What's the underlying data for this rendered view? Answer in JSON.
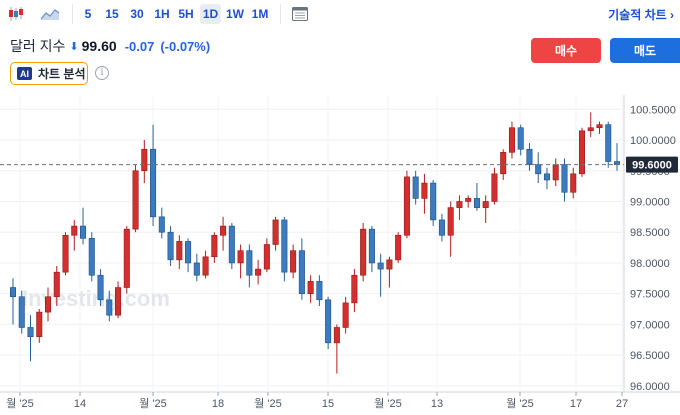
{
  "toolbar": {
    "chart_type_icon": "candlestick-icon",
    "area_icon": "area-chart-icon",
    "timeframes": [
      "5",
      "15",
      "30",
      "1H",
      "5H",
      "1D",
      "1W",
      "1M"
    ],
    "active_timeframe": "1D",
    "calendar_icon": "calendar-icon",
    "tools_label": "기술적 차트 ›"
  },
  "quote": {
    "name": "달러 지수",
    "direction_icon": "down-arrow-icon",
    "price": "99.60",
    "change": "-0.07",
    "change_pct": "(-0.07%)"
  },
  "ai_analysis": {
    "badge": "AI",
    "label": "차트 분석"
  },
  "info_icon": "info-icon",
  "actions": {
    "buy": "매수",
    "sell": "매도"
  },
  "chart_data": {
    "type": "candlestick",
    "watermark": "Investing.com",
    "y_ticks": [
      "100.5000",
      "100.0000",
      "99.5000",
      "99.0000",
      "98.5000",
      "98.0000",
      "97.5000",
      "97.0000",
      "96.5000",
      "96.0000"
    ],
    "ylim": [
      95.9,
      100.7
    ],
    "current_price_label": "99.6000",
    "current_price": 99.6,
    "x_ticks": [
      "월 '25",
      "14",
      "월 '25",
      "18",
      "월 '25",
      "15",
      "월 '25",
      "13",
      "월 '25",
      "17",
      "27"
    ],
    "grid": true,
    "up_color": "#d32f2f",
    "down_color": "#3b7bbf",
    "candles": [
      [
        97.6,
        97.75,
        97.0,
        97.45
      ],
      [
        97.45,
        97.55,
        96.85,
        96.95
      ],
      [
        96.95,
        97.15,
        96.4,
        96.8
      ],
      [
        96.8,
        97.25,
        96.7,
        97.2
      ],
      [
        97.2,
        97.6,
        97.05,
        97.45
      ],
      [
        97.45,
        97.95,
        97.3,
        97.85
      ],
      [
        97.85,
        98.5,
        97.8,
        98.45
      ],
      [
        98.45,
        98.7,
        98.2,
        98.6
      ],
      [
        98.6,
        98.9,
        98.3,
        98.4
      ],
      [
        98.4,
        98.5,
        97.7,
        97.8
      ],
      [
        97.8,
        97.9,
        97.3,
        97.4
      ],
      [
        97.4,
        97.55,
        97.05,
        97.15
      ],
      [
        97.15,
        97.7,
        97.1,
        97.6
      ],
      [
        97.6,
        98.6,
        97.5,
        98.55
      ],
      [
        98.55,
        99.6,
        98.5,
        99.5
      ],
      [
        99.5,
        100.0,
        99.3,
        99.85
      ],
      [
        99.85,
        100.25,
        98.6,
        98.75
      ],
      [
        98.75,
        98.9,
        98.4,
        98.5
      ],
      [
        98.5,
        98.6,
        97.95,
        98.05
      ],
      [
        98.05,
        98.45,
        97.9,
        98.35
      ],
      [
        98.35,
        98.4,
        97.85,
        98.0
      ],
      [
        98.0,
        98.15,
        97.7,
        97.8
      ],
      [
        97.8,
        98.2,
        97.75,
        98.1
      ],
      [
        98.1,
        98.5,
        98.0,
        98.45
      ],
      [
        98.45,
        98.75,
        98.2,
        98.6
      ],
      [
        98.6,
        98.65,
        97.9,
        98.0
      ],
      [
        98.0,
        98.3,
        97.75,
        98.2
      ],
      [
        98.2,
        98.3,
        97.6,
        97.8
      ],
      [
        97.8,
        98.05,
        97.65,
        97.9
      ],
      [
        97.9,
        98.4,
        97.85,
        98.3
      ],
      [
        98.3,
        98.75,
        98.2,
        98.7
      ],
      [
        98.7,
        98.75,
        97.7,
        97.85
      ],
      [
        97.85,
        98.3,
        97.75,
        98.2
      ],
      [
        98.2,
        98.4,
        97.4,
        97.5
      ],
      [
        97.5,
        97.8,
        97.35,
        97.7
      ],
      [
        97.7,
        97.8,
        97.3,
        97.4
      ],
      [
        97.4,
        97.45,
        96.6,
        96.7
      ],
      [
        96.7,
        97.0,
        96.2,
        96.95
      ],
      [
        96.95,
        97.45,
        96.85,
        97.35
      ],
      [
        97.35,
        97.9,
        97.2,
        97.8
      ],
      [
        97.8,
        98.65,
        97.7,
        98.55
      ],
      [
        98.55,
        98.6,
        97.85,
        98.0
      ],
      [
        98.0,
        98.15,
        97.45,
        97.9
      ],
      [
        97.9,
        98.1,
        97.6,
        98.05
      ],
      [
        98.05,
        98.5,
        98.0,
        98.45
      ],
      [
        98.45,
        99.5,
        98.4,
        99.4
      ],
      [
        99.4,
        99.5,
        98.95,
        99.05
      ],
      [
        99.05,
        99.45,
        98.8,
        99.3
      ],
      [
        99.3,
        99.35,
        98.6,
        98.7
      ],
      [
        98.7,
        98.8,
        98.35,
        98.45
      ],
      [
        98.45,
        99.0,
        98.1,
        98.9
      ],
      [
        98.9,
        99.1,
        98.7,
        99.0
      ],
      [
        99.0,
        99.1,
        98.9,
        99.05
      ],
      [
        99.05,
        99.3,
        98.85,
        98.9
      ],
      [
        98.9,
        99.1,
        98.65,
        99.0
      ],
      [
        99.0,
        99.55,
        98.95,
        99.45
      ],
      [
        99.45,
        99.85,
        99.35,
        99.8
      ],
      [
        99.8,
        100.3,
        99.7,
        100.2
      ],
      [
        100.2,
        100.25,
        99.75,
        99.85
      ],
      [
        99.85,
        99.95,
        99.5,
        99.6
      ],
      [
        99.6,
        99.8,
        99.3,
        99.45
      ],
      [
        99.45,
        99.55,
        99.2,
        99.35
      ],
      [
        99.35,
        99.7,
        99.25,
        99.6
      ],
      [
        99.6,
        99.7,
        99.0,
        99.15
      ],
      [
        99.15,
        99.55,
        99.05,
        99.45
      ],
      [
        99.45,
        100.2,
        99.4,
        100.15
      ],
      [
        100.15,
        100.45,
        100.05,
        100.2
      ],
      [
        100.2,
        100.3,
        100.1,
        100.25
      ],
      [
        100.25,
        100.3,
        99.55,
        99.65
      ],
      [
        99.65,
        99.95,
        99.5,
        99.6
      ]
    ]
  }
}
